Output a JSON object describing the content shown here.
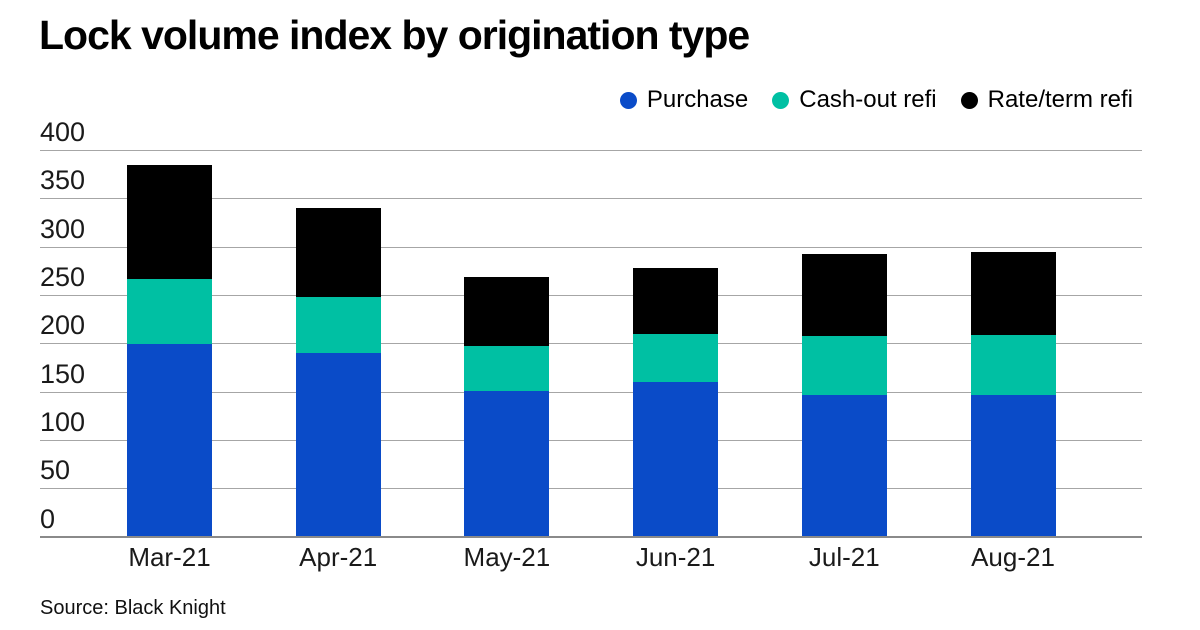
{
  "title": "Lock volume index by origination type",
  "source": "Source: Black Knight",
  "colors": {
    "purchase": "#0a4bc8",
    "cashout_refi": "#00c0a3",
    "rateterm_refi": "#000000",
    "gridline": "#a6a6a6",
    "baseline": "#8a8a8a",
    "text": "#000000"
  },
  "legend": {
    "items": [
      {
        "label": "Purchase",
        "color": "#0a4bc8"
      },
      {
        "label": "Cash-out refi",
        "color": "#00c0a3"
      },
      {
        "label": "Rate/term refi",
        "color": "#000000"
      }
    ]
  },
  "chart_data": {
    "type": "bar",
    "stacked": true,
    "title": "Lock volume index by origination type",
    "xlabel": "",
    "ylabel": "",
    "categories": [
      "Mar-21",
      "Apr-21",
      "May-21",
      "Jun-21",
      "Jul-21",
      "Aug-21"
    ],
    "series": [
      {
        "name": "Purchase",
        "color": "#0a4bc8",
        "values": [
          199,
          190,
          151,
          160,
          146,
          146
        ]
      },
      {
        "name": "Cash-out refi",
        "color": "#00c0a3",
        "values": [
          68,
          58,
          46,
          50,
          61,
          63
        ]
      },
      {
        "name": "Rate/term refi",
        "color": "#000000",
        "values": [
          117,
          92,
          72,
          68,
          85,
          85
        ]
      }
    ],
    "stack_totals": [
      384,
      340,
      269,
      278,
      292,
      294
    ],
    "ylim": [
      0,
      400
    ],
    "yticks": [
      0,
      50,
      100,
      150,
      200,
      250,
      300,
      350,
      400
    ],
    "grid": true,
    "legend_position": "top-right"
  }
}
